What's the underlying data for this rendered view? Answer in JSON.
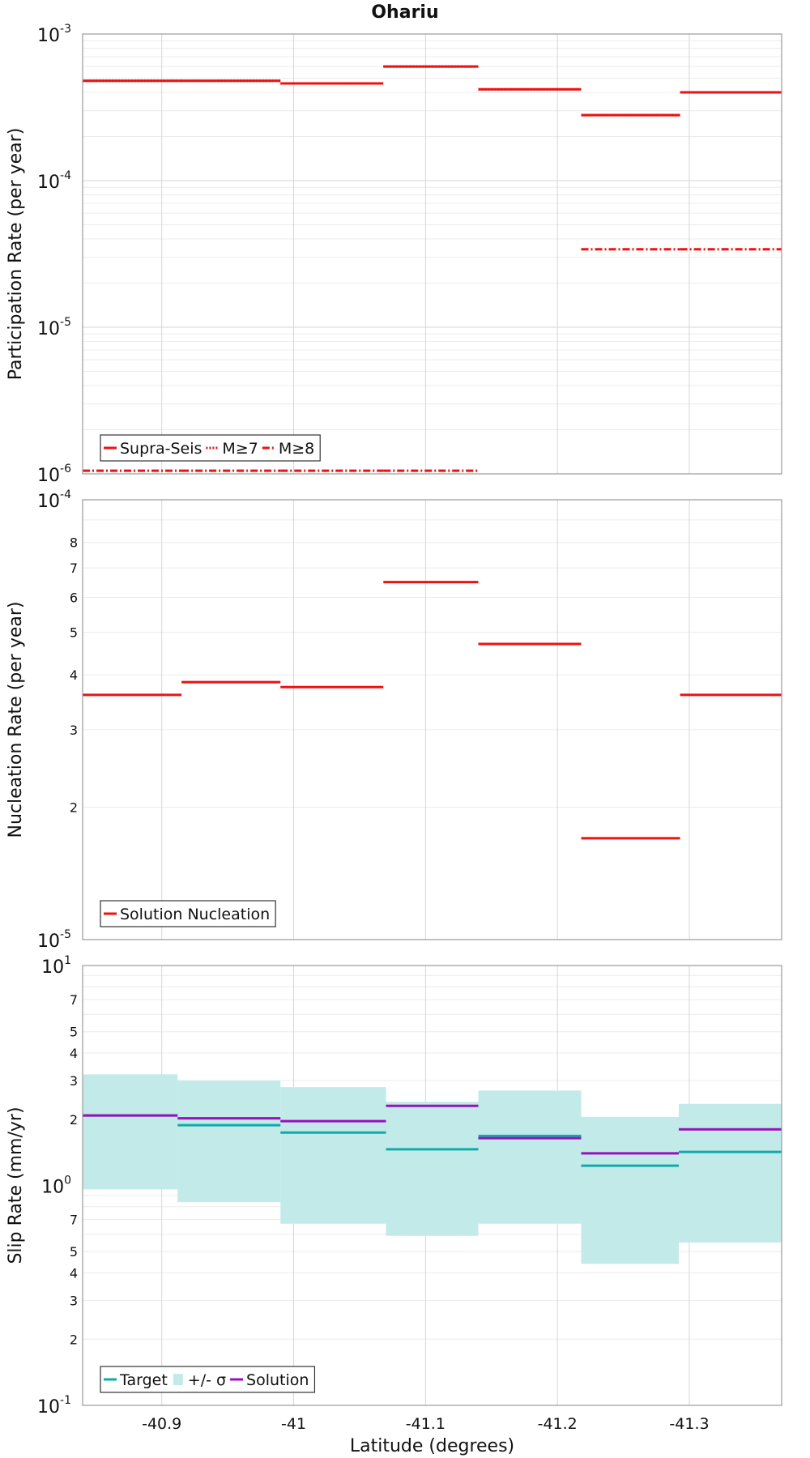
{
  "title": "Ohariu",
  "colors": {
    "red": "#ee1111",
    "target": "#11aaaa",
    "band": "#c2eae9",
    "solution": "#9911bb"
  },
  "chart_data": [
    {
      "type": "line",
      "subtype": "step",
      "scale": "log",
      "ylabel": "Participation Rate (per year)",
      "ylim": [
        1e-06,
        0.001
      ],
      "xlim": [
        -40.84,
        -41.37
      ],
      "y_major_ticks": [
        {
          "base": "10",
          "exp": "-6"
        },
        {
          "base": "10",
          "exp": "-5"
        },
        {
          "base": "10",
          "exp": "-4"
        },
        {
          "base": "10",
          "exp": "-3"
        }
      ],
      "bins": [
        [
          -40.84,
          -40.915
        ],
        [
          -40.915,
          -40.99
        ],
        [
          -40.99,
          -41.068
        ],
        [
          -41.068,
          -41.14
        ],
        [
          -41.14,
          -41.218
        ],
        [
          -41.218,
          -41.293
        ],
        [
          -41.293,
          -41.37
        ]
      ],
      "series": [
        {
          "name": "Supra-Seis",
          "style": "solid",
          "values": [
            0.00048,
            0.00048,
            0.00046,
            0.0006,
            0.00042,
            0.00028,
            0.0004
          ]
        },
        {
          "name": "M≥7",
          "style": "dotted",
          "values": [
            0.00048,
            0.00048,
            0.00046,
            0.0006,
            0.00042,
            0.00028,
            0.0004
          ]
        },
        {
          "name": "M≥8",
          "style": "dashdot",
          "values": [
            1.05e-06,
            1.05e-06,
            1.05e-06,
            1.05e-06,
            null,
            3.4e-05,
            3.4e-05
          ]
        }
      ],
      "legend": "bottom-left",
      "grid": true
    },
    {
      "type": "line",
      "subtype": "step",
      "scale": "log",
      "ylabel": "Nucleation Rate (per year)",
      "ylim": [
        1e-05,
        0.0001
      ],
      "xlim": [
        -40.84,
        -41.37
      ],
      "y_major_ticks": [
        {
          "base": "10",
          "exp": "-5"
        },
        {
          "base": "10",
          "exp": "-4"
        }
      ],
      "y_minor_labels": [
        "2",
        "3",
        "4",
        "5",
        "6",
        "7",
        "8"
      ],
      "bins": [
        [
          -40.84,
          -40.915
        ],
        [
          -40.915,
          -40.99
        ],
        [
          -40.99,
          -41.068
        ],
        [
          -41.068,
          -41.14
        ],
        [
          -41.14,
          -41.218
        ],
        [
          -41.218,
          -41.293
        ],
        [
          -41.293,
          -41.37
        ]
      ],
      "series": [
        {
          "name": "Solution Nucleation",
          "style": "solid",
          "values": [
            3.6e-05,
            3.85e-05,
            3.75e-05,
            6.5e-05,
            4.7e-05,
            1.7e-05,
            3.6e-05
          ]
        }
      ],
      "legend": "bottom-left",
      "grid": true
    },
    {
      "type": "line",
      "subtype": "step",
      "scale": "log",
      "ylabel": "Slip Rate (mm/yr)",
      "xlabel": "Latitude (degrees)",
      "ylim": [
        0.1,
        10
      ],
      "xlim": [
        -40.84,
        -41.37
      ],
      "y_major_ticks": [
        {
          "base": "10",
          "exp": "-1"
        },
        {
          "base": "10",
          "exp": "0"
        },
        {
          "base": "10",
          "exp": "1"
        }
      ],
      "y_minor_labels": [
        "2",
        "3",
        "4",
        "5",
        "7"
      ],
      "x_ticks": [
        {
          "value": -40.9,
          "label": "-40.9"
        },
        {
          "value": -41.0,
          "label": "-41"
        },
        {
          "value": -41.1,
          "label": "-41.1"
        },
        {
          "value": -41.2,
          "label": "-41.2"
        },
        {
          "value": -41.3,
          "label": "-41.3"
        }
      ],
      "bins": [
        [
          -40.84,
          -40.912
        ],
        [
          -40.912,
          -40.99
        ],
        [
          -40.99,
          -41.07
        ],
        [
          -41.07,
          -41.14
        ],
        [
          -41.14,
          -41.218
        ],
        [
          -41.218,
          -41.292
        ],
        [
          -41.292,
          -41.37
        ]
      ],
      "band_name": "+/- σ",
      "band_low": [
        0.96,
        0.84,
        0.67,
        0.59,
        0.67,
        0.44,
        0.55
      ],
      "band_high": [
        3.2,
        3.0,
        2.8,
        2.4,
        2.7,
        2.05,
        2.35
      ],
      "series": [
        {
          "name": "Target",
          "style": "solid",
          "values": [
            2.08,
            1.88,
            1.74,
            1.46,
            1.68,
            1.23,
            1.42
          ]
        },
        {
          "name": "Solution",
          "style": "solid",
          "values": [
            2.08,
            2.02,
            1.96,
            2.3,
            1.64,
            1.4,
            1.8
          ]
        }
      ],
      "legend": "bottom-left",
      "grid": true
    }
  ]
}
